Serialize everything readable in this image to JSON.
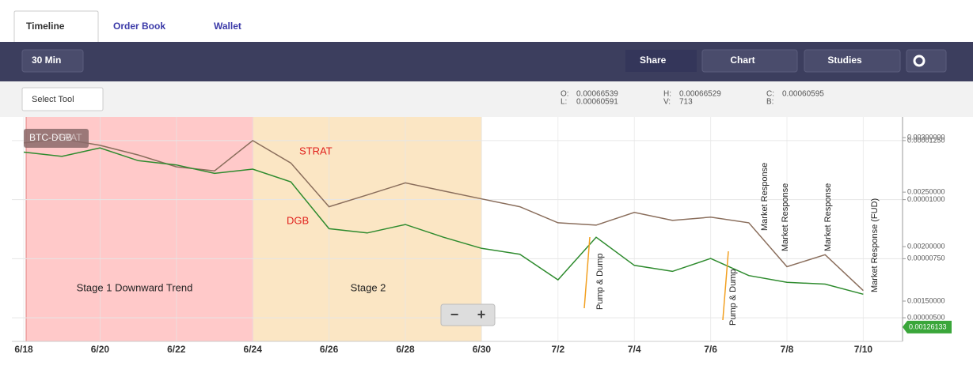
{
  "tabs": [
    "Timeline",
    "Order Book",
    "Wallet"
  ],
  "toolbar": {
    "interval": "30 Min",
    "share": "Share",
    "chart": "Chart",
    "studies": "Studies",
    "select_tool": "Select Tool"
  },
  "ohlc": {
    "o_label": "O:",
    "o": "0.00066539",
    "l_label": "L:",
    "l": "0.00060591",
    "h_label": "H:",
    "h": "0.00066529",
    "v_label": "V:",
    "v": "713",
    "c_label": "C:",
    "c": "0.00060595",
    "b_label": "B:"
  },
  "symbols": [
    "BTC-DGB",
    "BTC-STRAT"
  ],
  "zoom": [
    "−",
    "+"
  ],
  "chart_data": {
    "type": "line",
    "annotations": {
      "stage1": "Stage 1 Downward Trend",
      "stage2": "Stage 2",
      "strat": "STRAT",
      "dgb": "DGB",
      "pump1": "Pump & Dump",
      "pump2": "Pump & Dump",
      "resp1": "Market Response",
      "resp2": "Market Response",
      "resp3": "Market Response",
      "fud": "Market Response (FUD)"
    },
    "x": [
      "6/18",
      "6/19",
      "6/20",
      "6/21",
      "6/22",
      "6/23",
      "6/24",
      "6/25",
      "6/26",
      "6/27",
      "6/28",
      "6/29",
      "6/30",
      "7/1",
      "7/2",
      "7/3",
      "7/4",
      "7/5",
      "7/6",
      "7/7",
      "7/8",
      "7/9",
      "7/10"
    ],
    "xticks": [
      "6/18",
      "6/20",
      "6/22",
      "6/24",
      "6/26",
      "6/28",
      "6/30",
      "7/2",
      "7/4",
      "7/6",
      "7/8",
      "7/10"
    ],
    "ylim": [
      4e-06,
      1.35e-05
    ],
    "yticks": [
      {
        "value": 1.25e-05,
        "label": "0.00001250"
      },
      {
        "value": 1e-05,
        "label": "0.00001000"
      },
      {
        "value": 7.5e-06,
        "label": "0.00000750"
      },
      {
        "value": 5e-06,
        "label": "0.00000500"
      }
    ],
    "y2lim": [
      0.00113,
      0.00319
    ],
    "y2ticks": [
      {
        "value": 0.003,
        "label": "0.00300000"
      },
      {
        "value": 0.0025,
        "label": "0.00250000"
      },
      {
        "value": 0.002,
        "label": "0.00200000"
      },
      {
        "value": 0.0015,
        "label": "0.00150000"
      }
    ],
    "last_value": {
      "value": 0.00126133,
      "label": "0.00126133"
    },
    "series": [
      {
        "name": "STRAT",
        "color": "#8a6e5c",
        "values": [
          1.24e-05,
          1.257e-05,
          1.23e-05,
          1.189e-05,
          1.139e-05,
          1.122e-05,
          1.25e-05,
          1.155e-05,
          9.7e-06,
          1.02e-05,
          1.071e-05,
          1.037e-05,
          1.003e-05,
          9.7e-06,
          9.02e-06,
          8.92e-06,
          9.46e-06,
          9.12e-06,
          9.26e-06,
          9.02e-06,
          7.16e-06,
          7.67e-06,
          6.15e-06
        ]
      },
      {
        "name": "DGB",
        "color": "#2e8b2e",
        "axis": "y2",
        "values": [
          0.002867,
          0.002828,
          0.002906,
          0.002789,
          0.00275,
          0.002672,
          0.002711,
          0.002594,
          0.002164,
          0.002125,
          0.002203,
          0.002086,
          0.001984,
          0.00193,
          0.001695,
          0.002086,
          0.001828,
          0.001773,
          0.001891,
          0.001734,
          0.001672,
          0.001656,
          0.001563
        ]
      }
    ]
  }
}
